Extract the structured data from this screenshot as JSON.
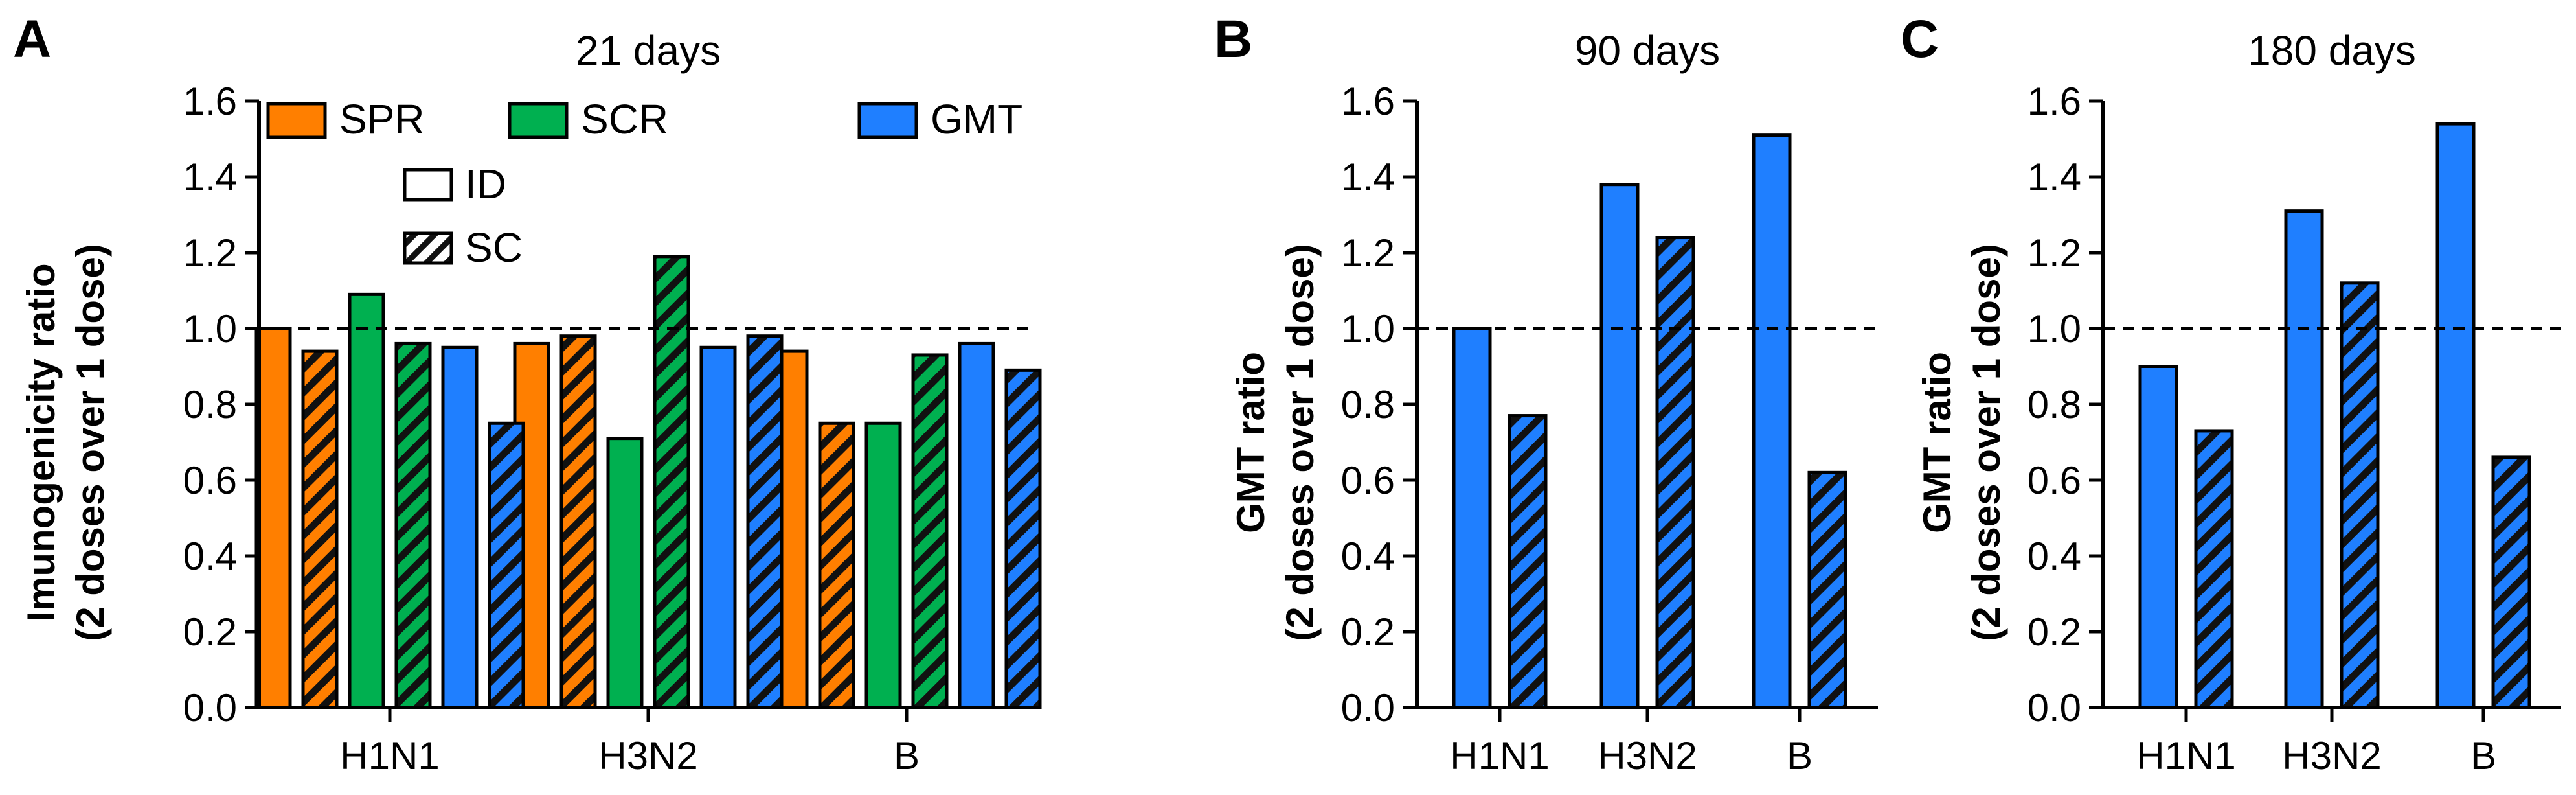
{
  "colors": {
    "SPR": "#ff7f00",
    "SCR": "#00b050",
    "GMT": "#1f7fff",
    "ID_fill": "#ffffff",
    "axis": "#000000",
    "reference_line": "#000000"
  },
  "legend": {
    "items": [
      "SPR",
      "SCR",
      "GMT"
    ],
    "route_items": [
      {
        "label": "ID",
        "pattern": "open"
      },
      {
        "label": "SC",
        "pattern": "hatched"
      }
    ]
  },
  "chart_data": [
    {
      "panel": "A",
      "type": "bar",
      "title": "21 days",
      "ylabel_line1": "Imunogenicity ratio",
      "ylabel_line2": "(2 doses over 1 dose)",
      "categories": [
        "H1N1",
        "H3N2",
        "B"
      ],
      "ylim": [
        0,
        1.6
      ],
      "yticks": [
        "0.0",
        "0.2",
        "0.4",
        "0.6",
        "0.8",
        "1.0",
        "1.2",
        "1.4",
        "1.6"
      ],
      "reference_line": 1.0,
      "legend_position": "top",
      "series": [
        {
          "name": "SPR",
          "route": "ID",
          "values": [
            1.0,
            0.96,
            0.94
          ]
        },
        {
          "name": "SPR",
          "route": "SC",
          "values": [
            0.94,
            0.98,
            0.75
          ]
        },
        {
          "name": "SCR",
          "route": "ID",
          "values": [
            1.09,
            0.71,
            0.75
          ]
        },
        {
          "name": "SCR",
          "route": "SC",
          "values": [
            0.96,
            1.19,
            0.93
          ]
        },
        {
          "name": "GMT",
          "route": "ID",
          "values": [
            0.95,
            0.95,
            0.96
          ]
        },
        {
          "name": "GMT",
          "route": "SC",
          "values": [
            0.75,
            0.98,
            0.89
          ]
        }
      ]
    },
    {
      "panel": "B",
      "type": "bar",
      "title": "90 days",
      "ylabel_line1": "GMT ratio",
      "ylabel_line2": "(2 doses over 1 dose)",
      "categories": [
        "H1N1",
        "H3N2",
        "B"
      ],
      "ylim": [
        0,
        1.6
      ],
      "yticks": [
        "0.0",
        "0.2",
        "0.4",
        "0.6",
        "0.8",
        "1.0",
        "1.2",
        "1.4",
        "1.6"
      ],
      "reference_line": 1.0,
      "series": [
        {
          "name": "GMT",
          "route": "ID",
          "values": [
            1.0,
            1.38,
            1.51
          ]
        },
        {
          "name": "GMT",
          "route": "SC",
          "values": [
            0.77,
            1.24,
            0.62
          ]
        }
      ]
    },
    {
      "panel": "C",
      "type": "bar",
      "title": "180 days",
      "ylabel_line1": "GMT ratio",
      "ylabel_line2": "(2 doses over 1 dose)",
      "categories": [
        "H1N1",
        "H3N2",
        "B"
      ],
      "ylim": [
        0,
        1.6
      ],
      "yticks": [
        "0.0",
        "0.2",
        "0.4",
        "0.6",
        "0.8",
        "1.0",
        "1.2",
        "1.4",
        "1.6"
      ],
      "reference_line": 1.0,
      "series": [
        {
          "name": "GMT",
          "route": "ID",
          "values": [
            0.9,
            1.31,
            1.54
          ]
        },
        {
          "name": "GMT",
          "route": "SC",
          "values": [
            0.73,
            1.12,
            0.66
          ]
        }
      ]
    }
  ]
}
